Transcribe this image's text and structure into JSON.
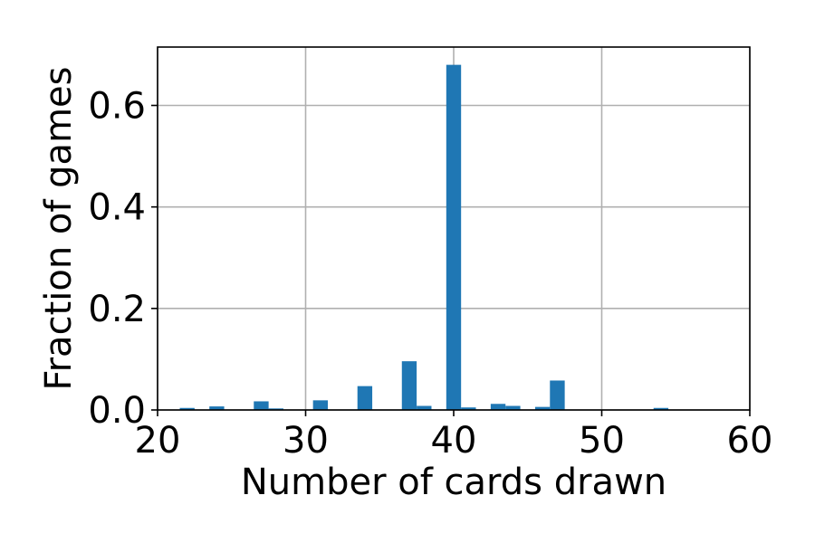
{
  "chart_data": {
    "type": "bar",
    "title": "",
    "xlabel": "Number of cards drawn",
    "ylabel": "Fraction of games",
    "xlim": [
      20,
      60
    ],
    "ylim": [
      0,
      0.715
    ],
    "bin_width": 1,
    "x_ticks": [
      20,
      30,
      40,
      50,
      60
    ],
    "x_tick_labels": [
      "20",
      "30",
      "40",
      "50",
      "60"
    ],
    "y_ticks": [
      0.0,
      0.2,
      0.4,
      0.6
    ],
    "y_tick_labels": [
      "0.0",
      "0.2",
      "0.4",
      "0.6"
    ],
    "grid": true,
    "bar_color": "#1f77b4",
    "x": [
      22,
      24,
      27,
      28,
      31,
      34,
      37,
      38,
      40,
      41,
      43,
      44,
      46,
      47,
      54
    ],
    "values": [
      0.004,
      0.007,
      0.017,
      0.003,
      0.019,
      0.047,
      0.096,
      0.008,
      0.68,
      0.005,
      0.012,
      0.008,
      0.006,
      0.058,
      0.004
    ]
  }
}
